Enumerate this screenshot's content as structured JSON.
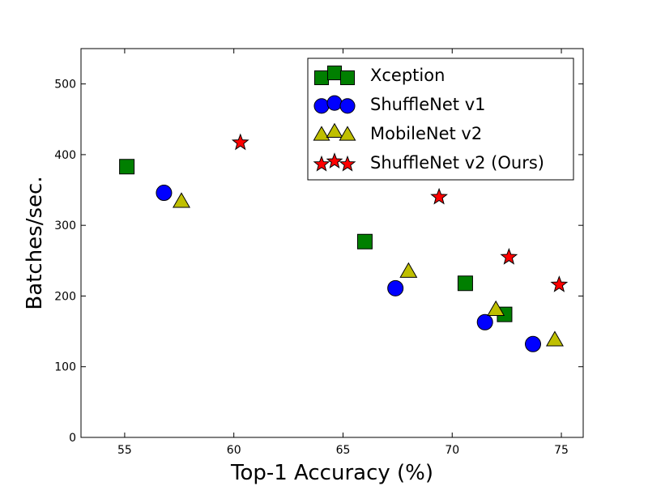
{
  "chart_data": {
    "type": "scatter",
    "title": "",
    "xlabel": "Top-1 Accuracy (%)",
    "ylabel": "Batches/sec.",
    "xlim": [
      53,
      76
    ],
    "ylim": [
      0,
      550
    ],
    "xticks": [
      55,
      60,
      65,
      70,
      75
    ],
    "yticks": [
      0,
      100,
      200,
      300,
      400,
      500
    ],
    "grid": false,
    "legend_position": "top-right",
    "series": [
      {
        "name": "Xception",
        "marker": "square",
        "color": "#007f00",
        "points": [
          [
            55.1,
            383
          ],
          [
            66.0,
            277
          ],
          [
            70.6,
            218
          ],
          [
            72.4,
            174
          ]
        ]
      },
      {
        "name": "ShuffleNet v1",
        "marker": "circle",
        "color": "#0000ff",
        "points": [
          [
            56.8,
            346
          ],
          [
            67.4,
            211
          ],
          [
            71.5,
            163
          ],
          [
            73.7,
            132
          ]
        ]
      },
      {
        "name": "MobileNet v2",
        "marker": "triangle",
        "color": "#bfbf00",
        "points": [
          [
            57.6,
            333
          ],
          [
            68.0,
            234
          ],
          [
            72.0,
            180
          ],
          [
            74.7,
            137
          ]
        ]
      },
      {
        "name": "ShuffleNet v2 (Ours)",
        "marker": "star",
        "color": "#ff0000",
        "points": [
          [
            60.3,
            417
          ],
          [
            69.4,
            340
          ],
          [
            72.6,
            255
          ],
          [
            74.9,
            216
          ]
        ]
      }
    ]
  }
}
